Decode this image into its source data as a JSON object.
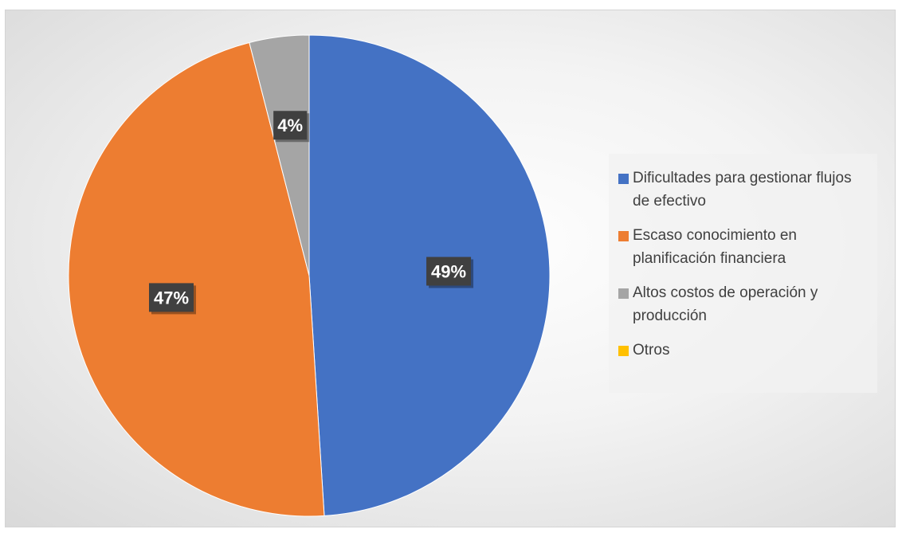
{
  "chart_data": {
    "type": "pie",
    "title": "",
    "categories": [
      "Dificultades para gestionar flujos de efectivo",
      "Escaso conocimiento en planificación financiera",
      "Altos costos de operación y producción",
      "Otros"
    ],
    "values": [
      49,
      47,
      4,
      0
    ],
    "value_labels": [
      "49%",
      "47%",
      "4%",
      ""
    ],
    "colors": [
      "#4472C4",
      "#ED7D31",
      "#A5A5A5",
      "#FFC000"
    ],
    "legend_position": "right",
    "start_angle": "12 o'clock",
    "direction": "clockwise"
  }
}
